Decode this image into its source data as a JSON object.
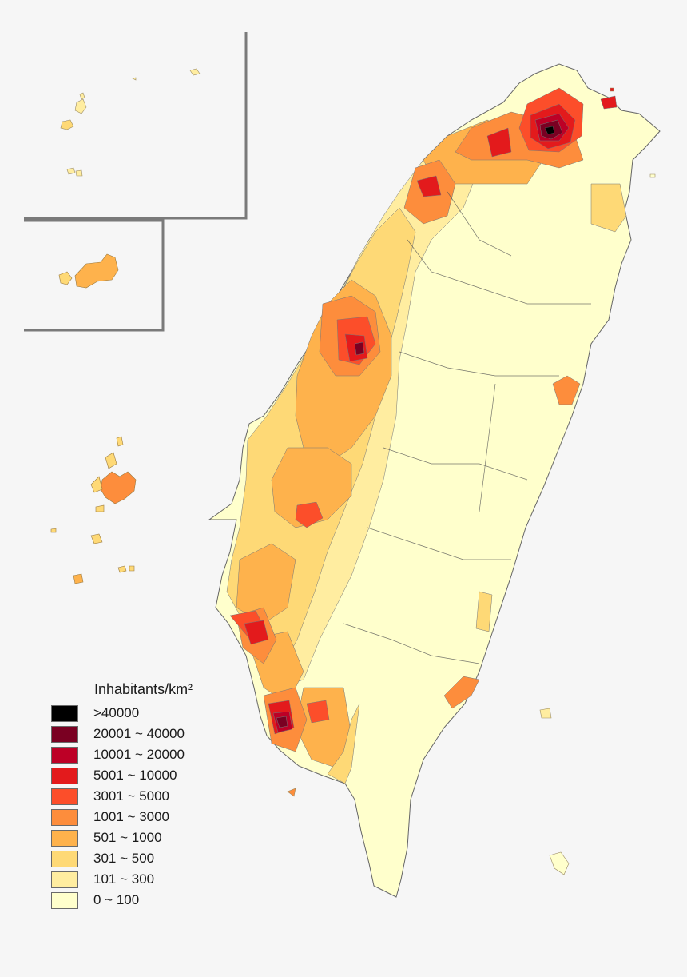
{
  "legend": {
    "title": "Inhabitants/km²",
    "classes": [
      {
        "label": ">40000",
        "color": "#000000"
      },
      {
        "label": "20001 ~ 40000",
        "color": "#7a0022"
      },
      {
        "label": "10001 ~ 20000",
        "color": "#bd0026"
      },
      {
        "label": "5001 ~ 10000",
        "color": "#e31a1c"
      },
      {
        "label": "3001 ~ 5000",
        "color": "#fc4e2a"
      },
      {
        "label": "1001 ~ 3000",
        "color": "#fd8d3c"
      },
      {
        "label": "501 ~ 1000",
        "color": "#feb24c"
      },
      {
        "label": "301 ~ 500",
        "color": "#fed976"
      },
      {
        "label": "101 ~ 300",
        "color": "#ffeda0"
      },
      {
        "label": "0 ~ 100",
        "color": "#ffffcc"
      }
    ]
  },
  "colors": {
    "background": "#f6f6f6",
    "inset_frame": "#7a7a7a",
    "boundary": "#555555"
  }
}
